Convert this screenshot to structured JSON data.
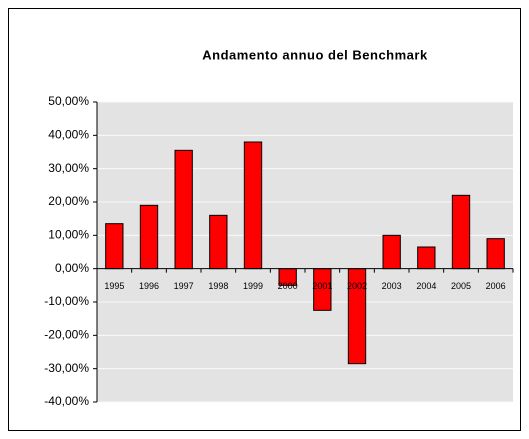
{
  "chart_data": {
    "type": "bar",
    "title": "Andamento annuo del Benchmark",
    "categories": [
      "1995",
      "1996",
      "1997",
      "1998",
      "1999",
      "2000",
      "2001",
      "2002",
      "2003",
      "2004",
      "2005",
      "2006"
    ],
    "values": [
      13.5,
      19,
      35.5,
      16,
      38,
      -5,
      -12.5,
      -28.5,
      10,
      6.5,
      22,
      9
    ],
    "color": "#ff0000",
    "ylim": [
      -40,
      50
    ],
    "yticks": [
      {
        "value": -40,
        "label": "-40,00%"
      },
      {
        "value": -30,
        "label": "-30,00%"
      },
      {
        "value": -20,
        "label": "-20,00%"
      },
      {
        "value": -10,
        "label": "-10,00%"
      },
      {
        "value": 0,
        "label": "0,00%"
      },
      {
        "value": 10,
        "label": "10,00%"
      },
      {
        "value": 20,
        "label": "20,00%"
      },
      {
        "value": 30,
        "label": "30,00%"
      },
      {
        "value": 40,
        "label": "40,00%"
      },
      {
        "value": 50,
        "label": "50,00%"
      }
    ],
    "grid": true
  }
}
